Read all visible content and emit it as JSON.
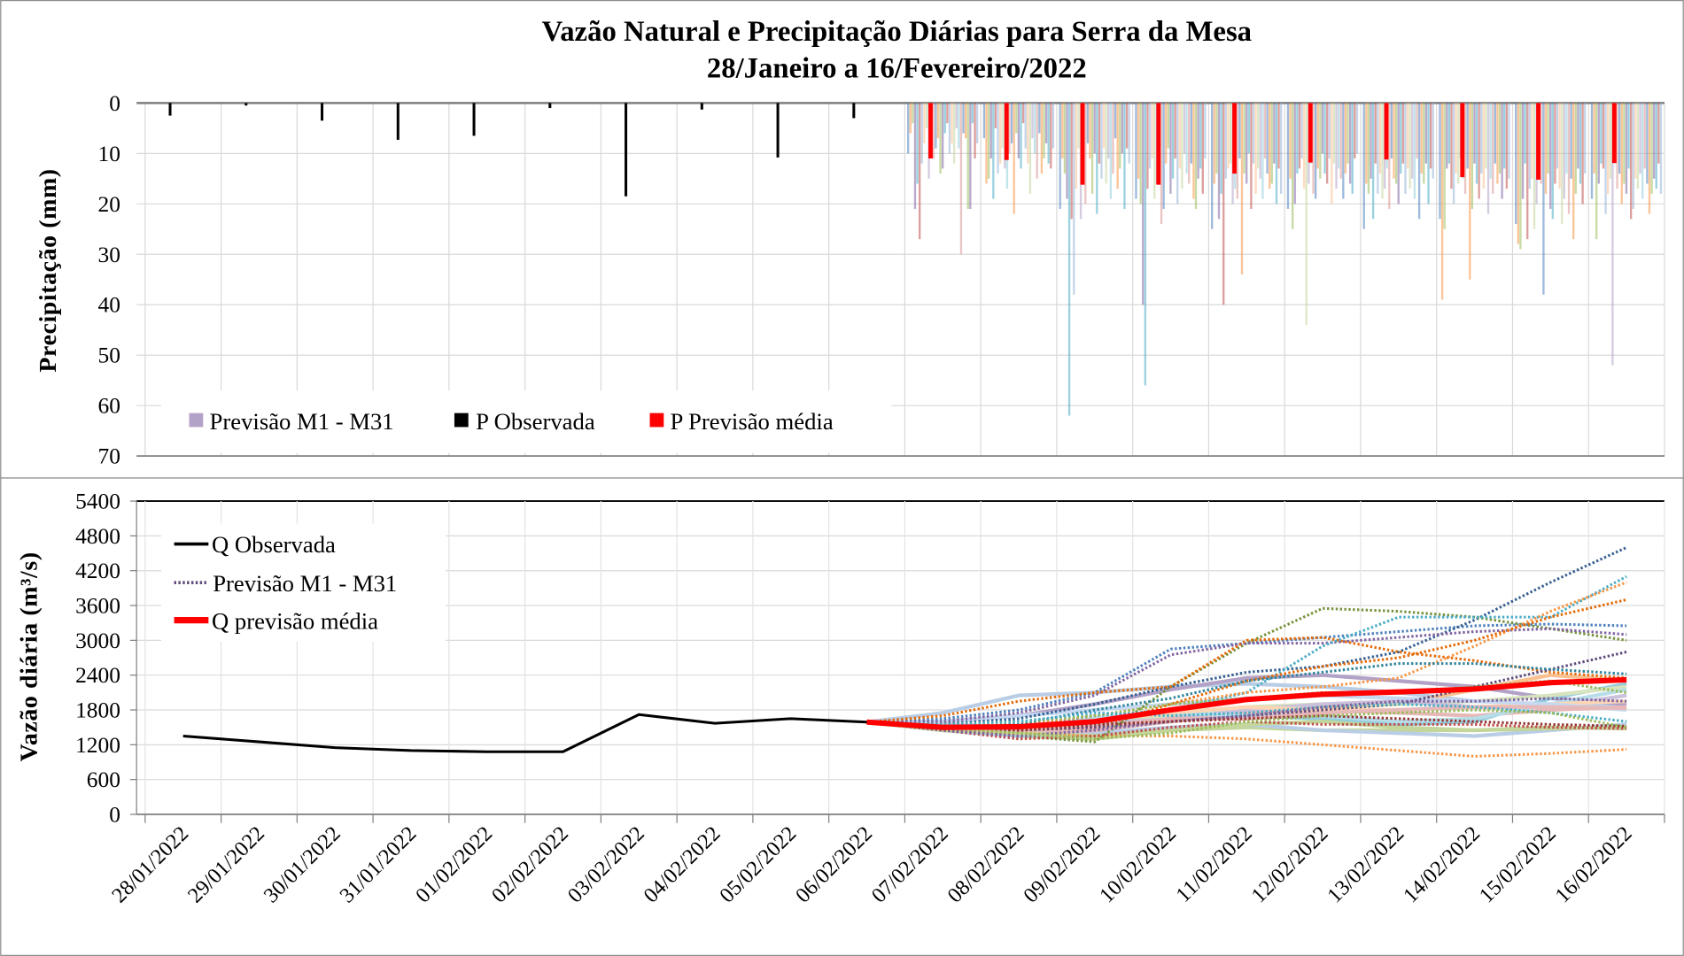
{
  "chart_data": [
    {
      "type": "bar",
      "title": "Vazão Natural e Precipitação Diárias para Serra da Mesa",
      "subtitle": "28/Janeiro a 16/Fevereiro/2022",
      "ylabel": "Precipitação (mm)",
      "ylim": [
        0,
        70
      ],
      "y_inverted": true,
      "yticks": [
        "0",
        "10",
        "20",
        "30",
        "40",
        "50",
        "60",
        "70"
      ],
      "grid": true,
      "legend_placement": "bottom-left",
      "legend": [
        "Previsão M1 - M31",
        "P Observada",
        "P Previsão média"
      ],
      "categories": [
        "28/01/2022",
        "29/01/2022",
        "30/01/2022",
        "31/01/2022",
        "01/02/2022",
        "02/02/2022",
        "03/02/2022",
        "04/02/2022",
        "05/02/2022",
        "06/02/2022",
        "07/02/2022",
        "08/02/2022",
        "09/02/2022",
        "10/02/2022",
        "11/02/2022",
        "12/02/2022",
        "13/02/2022",
        "14/02/2022",
        "15/02/2022",
        "16/02/2022"
      ],
      "observed": [
        2.5,
        0.5,
        3.5,
        7.3,
        6.5,
        1.0,
        18.5,
        1.3,
        10.8,
        3.0,
        null,
        null,
        null,
        null,
        null,
        null,
        null,
        null,
        null,
        null
      ],
      "forecast_mean": [
        null,
        null,
        null,
        null,
        null,
        null,
        null,
        null,
        null,
        null,
        11.0,
        11.3,
        16.2,
        16.2,
        14.0,
        11.8,
        11.2,
        14.7,
        15.2,
        11.9
      ],
      "members_by_day": [
        [
          10,
          6,
          4,
          21,
          16,
          27,
          12,
          8,
          5,
          15,
          3,
          11,
          9,
          7,
          14,
          13,
          6,
          4,
          10,
          8,
          12,
          5,
          9,
          30,
          6,
          7,
          21,
          21,
          4,
          11,
          8
        ],
        [
          7,
          16,
          15,
          11,
          19,
          5,
          14,
          12,
          9,
          13,
          17,
          10,
          8,
          22,
          6,
          11,
          13,
          4,
          9,
          12,
          18,
          7,
          10,
          15,
          6,
          14,
          11,
          8,
          12,
          13,
          9
        ],
        [
          21,
          11,
          14,
          19,
          62,
          23,
          38,
          17,
          9,
          23,
          13,
          20,
          8,
          11,
          18,
          10,
          22,
          12,
          15,
          9,
          16,
          11,
          19,
          14,
          7,
          17,
          13,
          10,
          21,
          9,
          12
        ],
        [
          19,
          15,
          20,
          40,
          56,
          17,
          13,
          11,
          19,
          16,
          14,
          24,
          21,
          12,
          9,
          18,
          15,
          11,
          20,
          13,
          17,
          10,
          14,
          16,
          12,
          19,
          21,
          15,
          13,
          18,
          11
        ],
        [
          25,
          16,
          14,
          23,
          18,
          40,
          15,
          13,
          12,
          20,
          17,
          19,
          11,
          34,
          14,
          16,
          10,
          21,
          12,
          18,
          13,
          15,
          19,
          11,
          14,
          17,
          16,
          12,
          20,
          13,
          18
        ],
        [
          21,
          15,
          25,
          20,
          14,
          13,
          11,
          17,
          44,
          16,
          12,
          18,
          19,
          13,
          15,
          10,
          14,
          16,
          11,
          20,
          12,
          17,
          13,
          15,
          19,
          14,
          12,
          16,
          18,
          11,
          10
        ],
        [
          25,
          16,
          18,
          15,
          23,
          12,
          18,
          14,
          19,
          17,
          13,
          21,
          11,
          15,
          16,
          20,
          14,
          12,
          18,
          13,
          17,
          15,
          19,
          11,
          23,
          14,
          16,
          12,
          20,
          13,
          15
        ],
        [
          23,
          39,
          25,
          13,
          12,
          17,
          20,
          14,
          16,
          11,
          15,
          18,
          13,
          35,
          21,
          12,
          16,
          19,
          14,
          17,
          13,
          22,
          15,
          18,
          12,
          16,
          14,
          19,
          13,
          17,
          15
        ],
        [
          24,
          28,
          29,
          19,
          12,
          27,
          17,
          15,
          25,
          20,
          13,
          16,
          38,
          18,
          14,
          21,
          23,
          16,
          13,
          17,
          24,
          19,
          14,
          22,
          15,
          27,
          18,
          13,
          16,
          20,
          14
        ],
        [
          19,
          14,
          27,
          16,
          12,
          13,
          22,
          18,
          15,
          52,
          12,
          17,
          14,
          20,
          16,
          18,
          13,
          23,
          21,
          15,
          17,
          14,
          19,
          13,
          16,
          22,
          18,
          15,
          17,
          12,
          18
        ]
      ],
      "member_colors": [
        "#4f81bd",
        "#f79646",
        "#9bbb59",
        "#8064a2",
        "#4bacc6",
        "#c0504d",
        "#95b3d7",
        "#fac090",
        "#c3d69b",
        "#b3a2c7",
        "#93cddd",
        "#d99694"
      ],
      "colors": {
        "observed": "#000000",
        "mean": "#ff0000",
        "members_legend": "#b3a2c7"
      }
    },
    {
      "type": "line",
      "ylabel": "Vazão diária (m³/s)",
      "ylim": [
        0,
        5400
      ],
      "yticks": [
        "0",
        "600",
        "1200",
        "1800",
        "2400",
        "3000",
        "3600",
        "4200",
        "4800",
        "5400"
      ],
      "grid": true,
      "legend_placement": "top-left",
      "legend": [
        "Q Observada",
        "Previsão M1 - M31",
        "Q previsão média"
      ],
      "x": [
        "28/01/2022",
        "29/01/2022",
        "30/01/2022",
        "31/01/2022",
        "01/02/2022",
        "02/02/2022",
        "03/02/2022",
        "04/02/2022",
        "05/02/2022",
        "06/02/2022",
        "07/02/2022",
        "08/02/2022",
        "09/02/2022",
        "10/02/2022",
        "11/02/2022",
        "12/02/2022",
        "13/02/2022",
        "14/02/2022",
        "15/02/2022",
        "16/02/2022"
      ],
      "observed": [
        1350,
        1250,
        1150,
        1100,
        1080,
        1080,
        1720,
        1570,
        1650,
        1590
      ],
      "forecast_start_index": 9,
      "forecast_mean": [
        1590,
        1500,
        1510,
        1600,
        1800,
        1980,
        2070,
        2110,
        2160,
        2270,
        2320
      ],
      "members": [
        {
          "color": "#4f81bd",
          "style": "dotted",
          "values": [
            1590,
            1650,
            1800,
            2100,
            2850,
            2950,
            3050,
            3150,
            3250,
            3280,
            3250
          ]
        },
        {
          "color": "#376092",
          "style": "dotted",
          "values": [
            1590,
            1560,
            1650,
            1900,
            2200,
            2450,
            2550,
            2800,
            3350,
            4000,
            4600
          ]
        },
        {
          "color": "#77933c",
          "style": "dotted",
          "values": [
            1590,
            1450,
            1350,
            1250,
            2200,
            2950,
            3550,
            3500,
            3400,
            3200,
            3000
          ]
        },
        {
          "color": "#8064a2",
          "style": "dotted",
          "values": [
            1590,
            1600,
            1750,
            2050,
            2750,
            2950,
            2950,
            3050,
            3150,
            3200,
            3100
          ]
        },
        {
          "color": "#e46c0a",
          "style": "dotted",
          "values": [
            1590,
            1700,
            1950,
            2100,
            2200,
            3000,
            3050,
            2800,
            2650,
            2450,
            2350
          ]
        },
        {
          "color": "#4bacc6",
          "style": "dotted",
          "values": [
            1590,
            1500,
            1500,
            1700,
            1800,
            2100,
            2900,
            3400,
            3400,
            3400,
            4100
          ]
        },
        {
          "color": "#f79646",
          "style": "dotted",
          "values": [
            1590,
            1550,
            1550,
            1700,
            1900,
            2100,
            2200,
            2350,
            2900,
            3500,
            4000
          ]
        },
        {
          "color": "#e46c0a",
          "style": "dotted",
          "values": [
            1590,
            1500,
            1450,
            1500,
            1900,
            2300,
            2550,
            2700,
            3000,
            3400,
            3700
          ]
        },
        {
          "color": "#604a7b",
          "style": "dotted",
          "values": [
            1590,
            1500,
            1450,
            1500,
            1600,
            1700,
            1800,
            1900,
            2200,
            2500,
            2800
          ]
        },
        {
          "color": "#31859c",
          "style": "dotted",
          "values": [
            1590,
            1500,
            1550,
            1800,
            2000,
            2300,
            2450,
            2600,
            2600,
            2500,
            2420
          ]
        },
        {
          "color": "#f79646",
          "style": "dotted",
          "values": [
            1590,
            1450,
            1400,
            1350,
            1350,
            1300,
            1200,
            1100,
            1000,
            1050,
            1120
          ]
        },
        {
          "color": "#c0504d",
          "style": "dotted",
          "values": [
            1590,
            1450,
            1300,
            1350,
            1500,
            1600,
            1550,
            1550,
            1550,
            1500,
            1480
          ]
        },
        {
          "color": "#9bbb59",
          "style": "dotted",
          "values": [
            1590,
            1550,
            1600,
            1700,
            1900,
            2000,
            2100,
            2100,
            2200,
            2300,
            2100
          ]
        },
        {
          "color": "#4bacc6",
          "style": "dotted",
          "values": [
            1590,
            1550,
            1600,
            1750,
            1700,
            1750,
            1850,
            1900,
            1850,
            1750,
            1600
          ]
        },
        {
          "color": "#8064a2",
          "style": "dotted",
          "values": [
            1590,
            1450,
            1350,
            1450,
            1600,
            1700,
            1850,
            1950,
            1950,
            2000,
            1950
          ]
        },
        {
          "color": "#953735",
          "style": "dotted",
          "values": [
            1590,
            1500,
            1450,
            1550,
            1600,
            1650,
            1700,
            1650,
            1600,
            1550,
            1520
          ]
        },
        {
          "color": "#b9cde5",
          "style": "solid",
          "values": [
            1590,
            1750,
            2050,
            2100,
            2200,
            2250,
            2200,
            2100,
            1950,
            1900,
            1850
          ]
        },
        {
          "color": "#b3a2c7",
          "style": "solid",
          "values": [
            1590,
            1600,
            1700,
            1900,
            2150,
            2350,
            2400,
            2300,
            2200,
            2000,
            1900
          ]
        },
        {
          "color": "#93cddd",
          "style": "solid",
          "values": [
            1590,
            1500,
            1500,
            1600,
            1700,
            1700,
            1650,
            1550,
            1600,
            2000,
            2250
          ]
        },
        {
          "color": "#fac090",
          "style": "solid",
          "values": [
            1590,
            1500,
            1450,
            1500,
            1700,
            1800,
            1850,
            1900,
            2150,
            2400,
            2300
          ]
        },
        {
          "color": "#c3d69b",
          "style": "solid",
          "values": [
            1590,
            1450,
            1350,
            1300,
            1450,
            1500,
            1450,
            1450,
            1450,
            1500,
            1480
          ]
        },
        {
          "color": "#b9cde5",
          "style": "solid",
          "values": [
            1590,
            1450,
            1350,
            1400,
            1500,
            1550,
            1450,
            1400,
            1350,
            1450,
            1550
          ]
        },
        {
          "color": "#e6b9b8",
          "style": "solid",
          "values": [
            1590,
            1500,
            1400,
            1450,
            1600,
            1750,
            1800,
            1750,
            1700,
            1800,
            1850
          ]
        },
        {
          "color": "#d7e4bd",
          "style": "solid",
          "values": [
            1590,
            1500,
            1450,
            1500,
            1700,
            1850,
            1900,
            1900,
            1950,
            2050,
            2200
          ]
        },
        {
          "color": "#ccc1da",
          "style": "solid",
          "values": [
            1590,
            1550,
            1500,
            1550,
            1650,
            1800,
            1900,
            1950,
            1850,
            1850,
            2050
          ]
        },
        {
          "color": "#b7dee8",
          "style": "solid",
          "values": [
            1590,
            1500,
            1450,
            1650,
            1750,
            1700,
            1700,
            1600,
            1650,
            1900,
            2150
          ]
        },
        {
          "color": "#fcd5b5",
          "style": "solid",
          "values": [
            1590,
            1500,
            1500,
            1600,
            1750,
            1850,
            1800,
            1800,
            1850,
            1900,
            1950
          ]
        },
        {
          "color": "#c3d69b",
          "style": "solid",
          "values": [
            1590,
            1450,
            1400,
            1350,
            1450,
            1550,
            1600,
            1500,
            1450,
            1480,
            1500
          ]
        },
        {
          "color": "#c6d9f1",
          "style": "solid",
          "values": [
            1590,
            1600,
            1700,
            1800,
            1900,
            2000,
            2050,
            2000,
            1950,
            1900,
            1800
          ]
        },
        {
          "color": "#9bbb59",
          "style": "dotted",
          "values": [
            1590,
            1500,
            1400,
            1300,
            1400,
            1600,
            1700,
            1750,
            1800,
            1750,
            1500
          ]
        },
        {
          "color": "#e6b9b8",
          "style": "solid",
          "values": [
            1590,
            1500,
            1450,
            1500,
            1650,
            1650,
            1750,
            1800,
            1850,
            1850,
            1830
          ]
        }
      ],
      "colors": {
        "observed": "#000000",
        "mean": "#ff0000",
        "members_legend": "#604a7b"
      }
    }
  ]
}
